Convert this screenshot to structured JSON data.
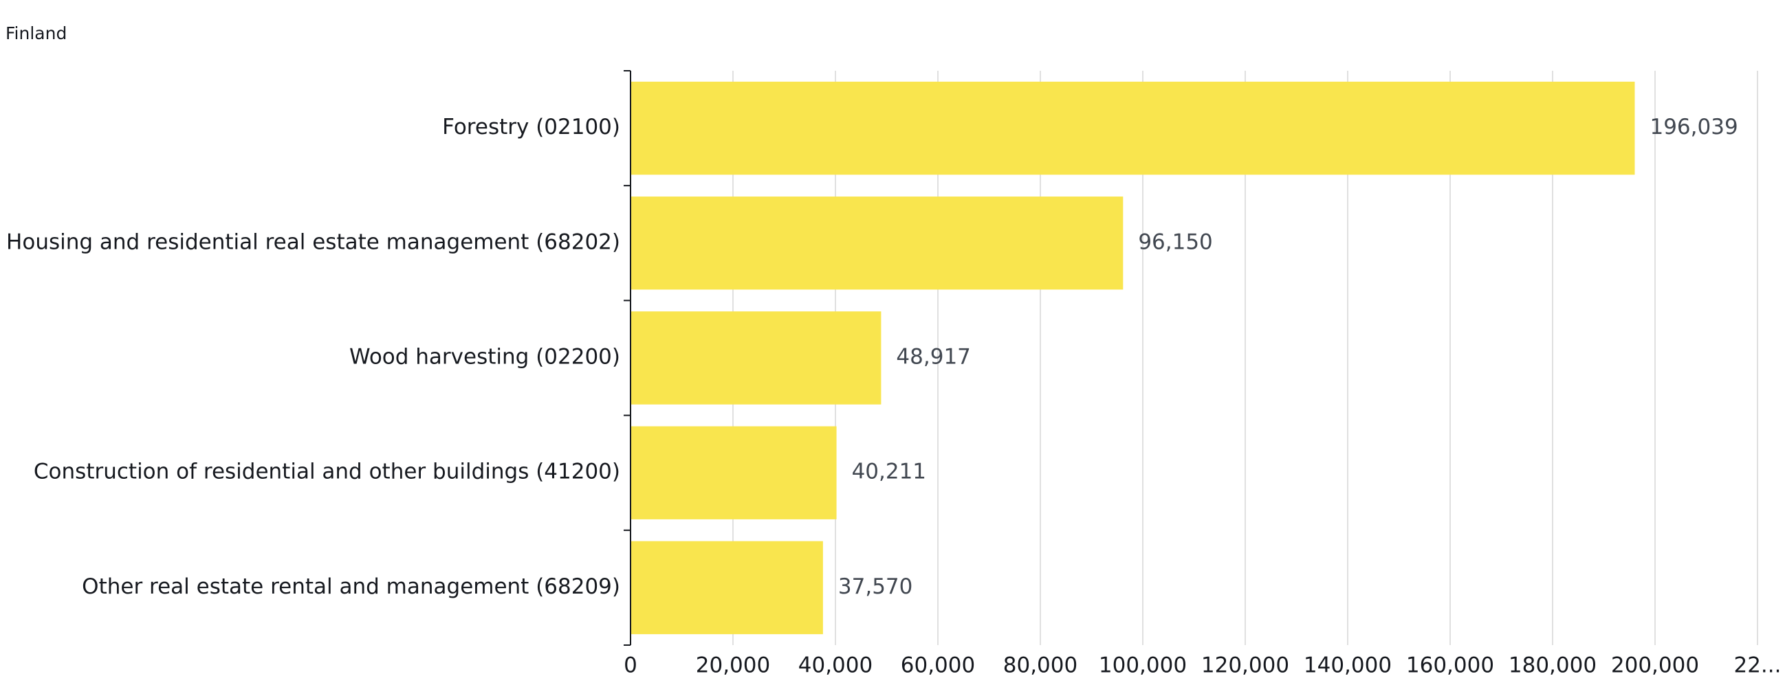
{
  "chart_data": {
    "type": "bar",
    "orientation": "horizontal",
    "title": "Finland",
    "categories": [
      "Forestry (02100)",
      "Housing and residential real estate management (68202)",
      "Wood harvesting (02200)",
      "Construction of residential and other buildings (41200)",
      "Other real estate rental and management (68209)"
    ],
    "values": [
      196039,
      96150,
      48917,
      40211,
      37570
    ],
    "value_labels": [
      "196,039",
      "96,150",
      "48,917",
      "40,211",
      "37,570"
    ],
    "color": "#f9e54e",
    "xlim": [
      0,
      220000
    ],
    "xticks": [
      0,
      {
        "value": 20000,
        "label": "20,000"
      },
      {
        "value": 40000,
        "label": "40,000"
      },
      {
        "value": 60000,
        "label": "60,000"
      },
      {
        "value": 80000,
        "label": "80,000"
      },
      {
        "value": 100000,
        "label": "100,000"
      },
      {
        "value": 120000,
        "label": "120,000"
      },
      {
        "value": 140000,
        "label": "140,000"
      },
      {
        "value": 160000,
        "label": "160,000"
      },
      {
        "value": 180000,
        "label": "180,000"
      },
      {
        "value": 200000,
        "label": "200,000"
      },
      {
        "value": 220000,
        "label": "22..."
      }
    ],
    "grid": true
  }
}
